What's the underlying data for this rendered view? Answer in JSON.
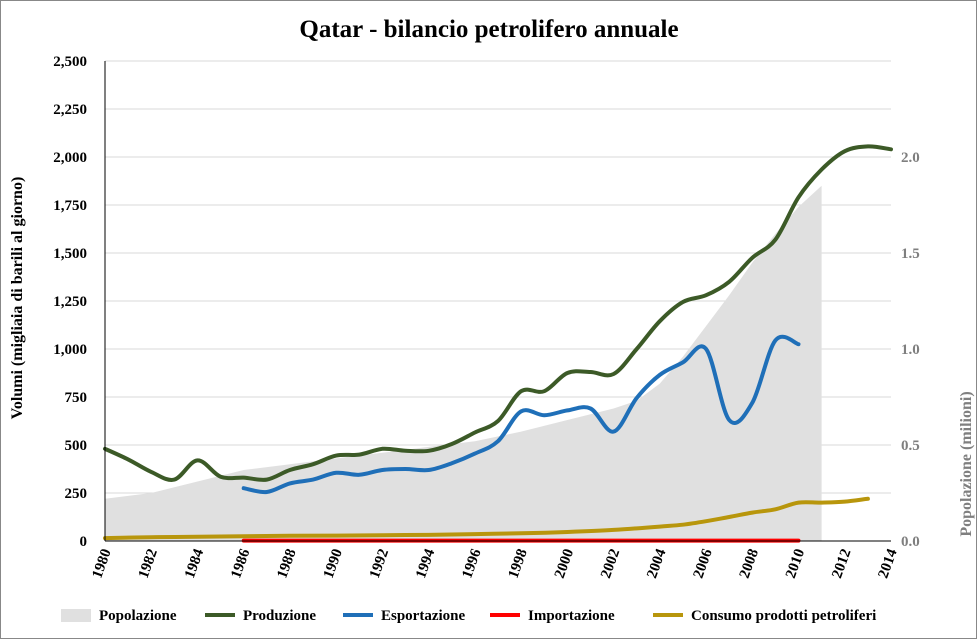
{
  "chart_data": {
    "type": "line",
    "title": "Qatar - bilancio petrolifero annuale",
    "ylabel": "Volumi (migliaia di barili al giorno)",
    "y2label": "Popolazione (milioni)",
    "ylim": [
      0,
      2500
    ],
    "y2lim": [
      0,
      2.5
    ],
    "xlim": [
      1980,
      2014
    ],
    "y_ticks": [
      "0",
      "250",
      "500",
      "750",
      "1,000",
      "1,250",
      "1,500",
      "1,750",
      "2,000",
      "2,250",
      "2,500"
    ],
    "y2_ticks": [
      "0.0",
      "0.5",
      "1.0",
      "1.5",
      "2.0"
    ],
    "x_ticks": [
      "1980",
      "1982",
      "1984",
      "1986",
      "1988",
      "1990",
      "1992",
      "1994",
      "1996",
      "1998",
      "2000",
      "2002",
      "2004",
      "2006",
      "2008",
      "2010",
      "2012",
      "2014"
    ],
    "grid": true,
    "legend_position": "bottom",
    "series": [
      {
        "name": "Popolazione",
        "kind": "area",
        "axis": "right",
        "color": "#e0e0e0",
        "x": [
          1980,
          1982,
          1984,
          1986,
          1988,
          1990,
          1992,
          1994,
          1996,
          1998,
          2000,
          2002,
          2003,
          2004,
          2005,
          2006,
          2007,
          2008,
          2009,
          2010,
          2011
        ],
        "y": [
          0.22,
          0.25,
          0.31,
          0.37,
          0.4,
          0.43,
          0.46,
          0.49,
          0.52,
          0.57,
          0.63,
          0.69,
          0.73,
          0.82,
          0.96,
          1.12,
          1.28,
          1.45,
          1.6,
          1.74,
          1.85
        ]
      },
      {
        "name": "Produzione",
        "kind": "line",
        "axis": "left",
        "color": "#3c5a27",
        "x": [
          1980,
          1981,
          1982,
          1983,
          1984,
          1985,
          1986,
          1987,
          1988,
          1989,
          1990,
          1991,
          1992,
          1993,
          1994,
          1995,
          1996,
          1997,
          1998,
          1999,
          2000,
          2001,
          2002,
          2003,
          2004,
          2005,
          2006,
          2007,
          2008,
          2009,
          2010,
          2011,
          2012,
          2013,
          2014
        ],
        "y": [
          480,
          425,
          360,
          320,
          420,
          335,
          330,
          320,
          370,
          400,
          445,
          450,
          480,
          470,
          470,
          505,
          565,
          625,
          780,
          780,
          875,
          880,
          870,
          1000,
          1145,
          1245,
          1280,
          1350,
          1475,
          1570,
          1790,
          1935,
          2030,
          2055,
          2040
        ]
      },
      {
        "name": "Esportazione",
        "kind": "line",
        "axis": "left",
        "color": "#1f6fb8",
        "x": [
          1986,
          1987,
          1988,
          1989,
          1990,
          1991,
          1992,
          1993,
          1994,
          1995,
          1996,
          1997,
          1998,
          1999,
          2000,
          2001,
          2002,
          2003,
          2004,
          2005,
          2006,
          2007,
          2008,
          2009,
          2010
        ],
        "y": [
          275,
          255,
          300,
          320,
          355,
          345,
          370,
          375,
          370,
          405,
          455,
          520,
          675,
          655,
          680,
          690,
          570,
          745,
          865,
          930,
          1000,
          630,
          720,
          1045,
          1025
        ]
      },
      {
        "name": "Importazione",
        "kind": "line",
        "axis": "left",
        "color": "#ff0000",
        "x": [
          1986,
          1990,
          1994,
          1998,
          2002,
          2006,
          2010
        ],
        "y": [
          2,
          2,
          2,
          2,
          2,
          2,
          2
        ]
      },
      {
        "name": "Consumo prodotti petroliferi",
        "kind": "line",
        "axis": "left",
        "color": "#b8960c",
        "x": [
          1980,
          1982,
          1984,
          1986,
          1988,
          1990,
          1992,
          1994,
          1996,
          1998,
          2000,
          2002,
          2004,
          2005,
          2006,
          2007,
          2008,
          2009,
          2010,
          2011,
          2012,
          2013
        ],
        "y": [
          15,
          20,
          22,
          25,
          27,
          28,
          30,
          32,
          36,
          40,
          47,
          58,
          75,
          85,
          103,
          125,
          148,
          165,
          200,
          200,
          205,
          220
        ]
      }
    ]
  }
}
